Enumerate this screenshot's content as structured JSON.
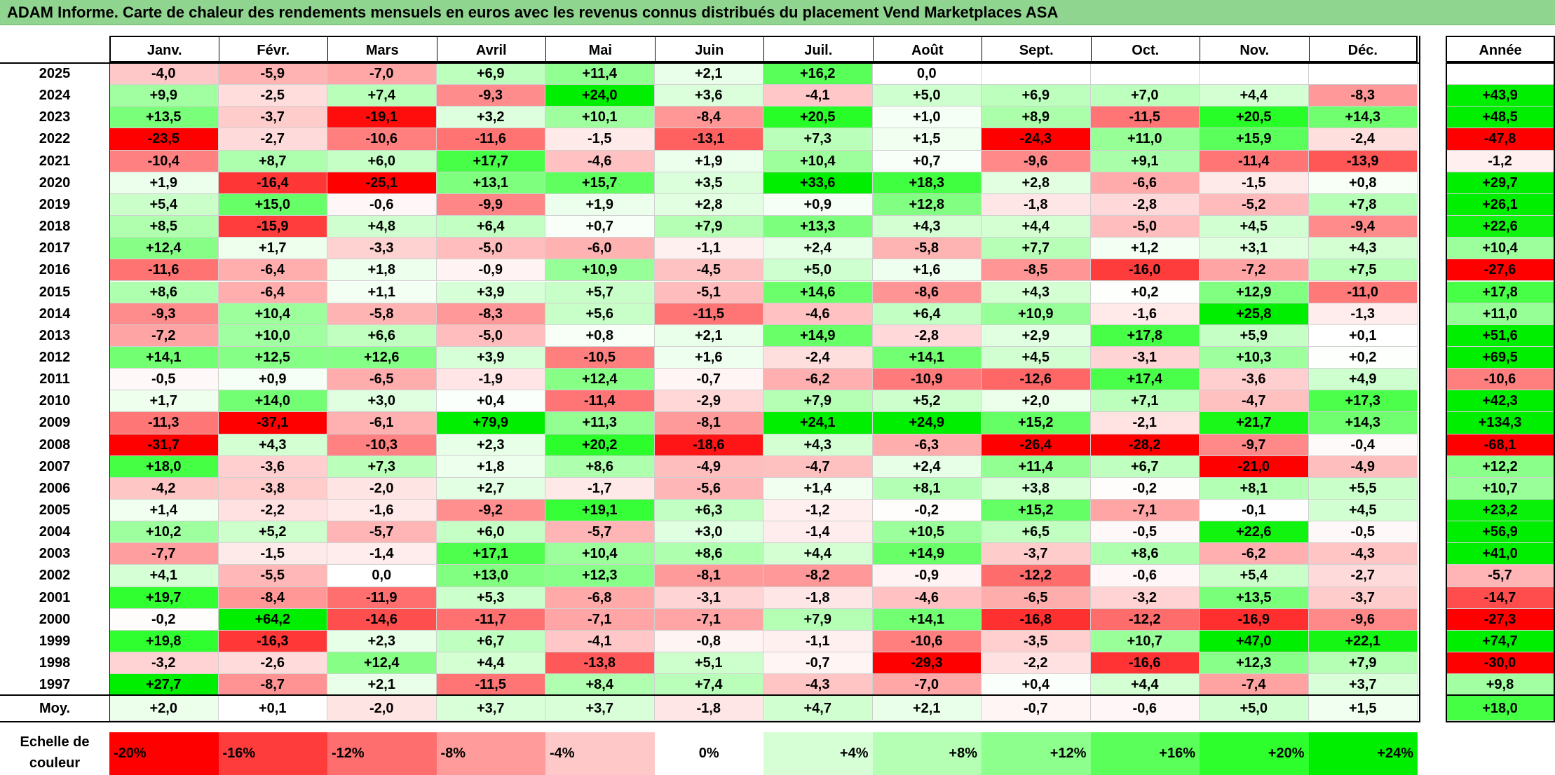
{
  "title": "ADAM Informe. Carte de chaleur des rendements mensuels en euros avec les revenus connus distribués du placement Vend Marketplaces ASA",
  "chart_data": {
    "type": "heatmap",
    "title": "ADAM Informe. Carte de chaleur des rendements mensuels en euros avec les revenus connus distribués du placement Vend Marketplaces ASA",
    "months": [
      "Janv.",
      "Févr.",
      "Mars",
      "Avril",
      "Mai",
      "Juin",
      "Juil.",
      "Août",
      "Sept.",
      "Oct.",
      "Nov.",
      "Déc."
    ],
    "annual_label": "Année",
    "rows": [
      {
        "year": "2025",
        "values": [
          "-4,0",
          "-5,9",
          "-7,0",
          "+6,9",
          "+11,4",
          "+2,1",
          "+16,2",
          "0,0",
          "",
          "",
          "",
          ""
        ],
        "annual": ""
      },
      {
        "year": "2024",
        "values": [
          "+9,9",
          "-2,5",
          "+7,4",
          "-9,3",
          "+24,0",
          "+3,6",
          "-4,1",
          "+5,0",
          "+6,9",
          "+7,0",
          "+4,4",
          "-8,3"
        ],
        "annual": "+43,9"
      },
      {
        "year": "2023",
        "values": [
          "+13,5",
          "-3,7",
          "-19,1",
          "+3,2",
          "+10,1",
          "-8,4",
          "+20,5",
          "+1,0",
          "+8,9",
          "-11,5",
          "+20,5",
          "+14,3"
        ],
        "annual": "+48,5"
      },
      {
        "year": "2022",
        "values": [
          "-23,5",
          "-2,7",
          "-10,6",
          "-11,6",
          "-1,5",
          "-13,1",
          "+7,3",
          "+1,5",
          "-24,3",
          "+11,0",
          "+15,9",
          "-2,4"
        ],
        "annual": "-47,8"
      },
      {
        "year": "2021",
        "values": [
          "-10,4",
          "+8,7",
          "+6,0",
          "+17,7",
          "-4,6",
          "+1,9",
          "+10,4",
          "+0,7",
          "-9,6",
          "+9,1",
          "-11,4",
          "-13,9"
        ],
        "annual": "-1,2"
      },
      {
        "year": "2020",
        "values": [
          "+1,9",
          "-16,4",
          "-25,1",
          "+13,1",
          "+15,7",
          "+3,5",
          "+33,6",
          "+18,3",
          "+2,8",
          "-6,6",
          "-1,5",
          "+0,8"
        ],
        "annual": "+29,7"
      },
      {
        "year": "2019",
        "values": [
          "+5,4",
          "+15,0",
          "-0,6",
          "-9,9",
          "+1,9",
          "+2,8",
          "+0,9",
          "+12,8",
          "-1,8",
          "-2,8",
          "-5,2",
          "+7,8"
        ],
        "annual": "+26,1"
      },
      {
        "year": "2018",
        "values": [
          "+8,5",
          "-15,9",
          "+4,8",
          "+6,4",
          "+0,7",
          "+7,9",
          "+13,3",
          "+4,3",
          "+4,4",
          "-5,0",
          "+4,5",
          "-9,4"
        ],
        "annual": "+22,6"
      },
      {
        "year": "2017",
        "values": [
          "+12,4",
          "+1,7",
          "-3,3",
          "-5,0",
          "-6,0",
          "-1,1",
          "+2,4",
          "-5,8",
          "+7,7",
          "+1,2",
          "+3,1",
          "+4,3"
        ],
        "annual": "+10,4"
      },
      {
        "year": "2016",
        "values": [
          "-11,6",
          "-6,4",
          "+1,8",
          "-0,9",
          "+10,9",
          "-4,5",
          "+5,0",
          "+1,6",
          "-8,5",
          "-16,0",
          "-7,2",
          "+7,5"
        ],
        "annual": "-27,6"
      },
      {
        "year": "2015",
        "values": [
          "+8,6",
          "-6,4",
          "+1,1",
          "+3,9",
          "+5,7",
          "-5,1",
          "+14,6",
          "-8,6",
          "+4,3",
          "+0,2",
          "+12,9",
          "-11,0"
        ],
        "annual": "+17,8"
      },
      {
        "year": "2014",
        "values": [
          "-9,3",
          "+10,4",
          "-5,8",
          "-8,3",
          "+5,6",
          "-11,5",
          "-4,6",
          "+6,4",
          "+10,9",
          "-1,6",
          "+25,8",
          "-1,3"
        ],
        "annual": "+11,0"
      },
      {
        "year": "2013",
        "values": [
          "-7,2",
          "+10,0",
          "+6,6",
          "-5,0",
          "+0,8",
          "+2,1",
          "+14,9",
          "-2,8",
          "+2,9",
          "+17,8",
          "+5,9",
          "+0,1"
        ],
        "annual": "+51,6"
      },
      {
        "year": "2012",
        "values": [
          "+14,1",
          "+12,5",
          "+12,6",
          "+3,9",
          "-10,5",
          "+1,6",
          "-2,4",
          "+14,1",
          "+4,5",
          "-3,1",
          "+10,3",
          "+0,2"
        ],
        "annual": "+69,5"
      },
      {
        "year": "2011",
        "values": [
          "-0,5",
          "+0,9",
          "-6,5",
          "-1,9",
          "+12,4",
          "-0,7",
          "-6,2",
          "-10,9",
          "-12,6",
          "+17,4",
          "-3,6",
          "+4,9"
        ],
        "annual": "-10,6"
      },
      {
        "year": "2010",
        "values": [
          "+1,7",
          "+14,0",
          "+3,0",
          "+0,4",
          "-11,4",
          "-2,9",
          "+7,9",
          "+5,2",
          "+2,0",
          "+7,1",
          "-4,7",
          "+17,3"
        ],
        "annual": "+42,3"
      },
      {
        "year": "2009",
        "values": [
          "-11,3",
          "-37,1",
          "-6,1",
          "+79,9",
          "+11,3",
          "-8,1",
          "+24,1",
          "+24,9",
          "+15,2",
          "-2,1",
          "+21,7",
          "+14,3"
        ],
        "annual": "+134,3"
      },
      {
        "year": "2008",
        "values": [
          "-31,7",
          "+4,3",
          "-10,3",
          "+2,3",
          "+20,2",
          "-18,6",
          "+4,3",
          "-6,3",
          "-26,4",
          "-28,2",
          "-9,7",
          "-0,4"
        ],
        "annual": "-68,1"
      },
      {
        "year": "2007",
        "values": [
          "+18,0",
          "-3,6",
          "+7,3",
          "+1,8",
          "+8,6",
          "-4,9",
          "-4,7",
          "+2,4",
          "+11,4",
          "+6,7",
          "-21,0",
          "-4,9"
        ],
        "annual": "+12,2"
      },
      {
        "year": "2006",
        "values": [
          "-4,2",
          "-3,8",
          "-2,0",
          "+2,7",
          "-1,7",
          "-5,6",
          "+1,4",
          "+8,1",
          "+3,8",
          "-0,2",
          "+8,1",
          "+5,5"
        ],
        "annual": "+10,7"
      },
      {
        "year": "2005",
        "values": [
          "+1,4",
          "-2,2",
          "-1,6",
          "-9,2",
          "+19,1",
          "+6,3",
          "-1,2",
          "-0,2",
          "+15,2",
          "-7,1",
          "-0,1",
          "+4,5"
        ],
        "annual": "+23,2"
      },
      {
        "year": "2004",
        "values": [
          "+10,2",
          "+5,2",
          "-5,7",
          "+6,0",
          "-5,7",
          "+3,0",
          "-1,4",
          "+10,5",
          "+6,5",
          "-0,5",
          "+22,6",
          "-0,5"
        ],
        "annual": "+56,9"
      },
      {
        "year": "2003",
        "values": [
          "-7,7",
          "-1,5",
          "-1,4",
          "+17,1",
          "+10,4",
          "+8,6",
          "+4,4",
          "+14,9",
          "-3,7",
          "+8,6",
          "-6,2",
          "-4,3"
        ],
        "annual": "+41,0"
      },
      {
        "year": "2002",
        "values": [
          "+4,1",
          "-5,5",
          "0,0",
          "+13,0",
          "+12,3",
          "-8,1",
          "-8,2",
          "-0,9",
          "-12,2",
          "-0,6",
          "+5,4",
          "-2,7"
        ],
        "annual": "-5,7"
      },
      {
        "year": "2001",
        "values": [
          "+19,7",
          "-8,4",
          "-11,9",
          "+5,3",
          "-6,8",
          "-3,1",
          "-1,8",
          "-4,6",
          "-6,5",
          "-3,2",
          "+13,5",
          "-3,7"
        ],
        "annual": "-14,7"
      },
      {
        "year": "2000",
        "values": [
          "-0,2",
          "+64,2",
          "-14,6",
          "-11,7",
          "-7,1",
          "-7,1",
          "+7,9",
          "+14,1",
          "-16,8",
          "-12,2",
          "-16,9",
          "-9,6"
        ],
        "annual": "-27,3"
      },
      {
        "year": "1999",
        "values": [
          "+19,8",
          "-16,3",
          "+2,3",
          "+6,7",
          "-4,1",
          "-0,8",
          "-1,1",
          "-10,6",
          "-3,5",
          "+10,7",
          "+47,0",
          "+22,1"
        ],
        "annual": "+74,7"
      },
      {
        "year": "1998",
        "values": [
          "-3,2",
          "-2,6",
          "+12,4",
          "+4,4",
          "-13,8",
          "+5,1",
          "-0,7",
          "-29,3",
          "-2,2",
          "-16,6",
          "+12,3",
          "+7,9"
        ],
        "annual": "-30,0"
      },
      {
        "year": "1997",
        "values": [
          "+27,7",
          "-8,7",
          "+2,1",
          "-11,5",
          "+8,4",
          "+7,4",
          "-4,3",
          "-7,0",
          "+0,4",
          "+4,4",
          "-7,4",
          "+3,7"
        ],
        "annual": "+9,8"
      }
    ],
    "average": {
      "label": "Moy.",
      "values": [
        "+2,0",
        "+0,1",
        "-2,0",
        "+3,7",
        "+3,7",
        "-1,8",
        "+4,7",
        "+2,1",
        "-0,7",
        "-0,6",
        "+5,0",
        "+1,5"
      ],
      "annual": "+18,0"
    },
    "color_scale": {
      "label": "Echelle de couleur",
      "steps": [
        "-20%",
        "-16%",
        "-12%",
        "-8%",
        "-4%",
        "0%",
        "+4%",
        "+8%",
        "+12%",
        "+16%",
        "+20%",
        "+24%"
      ],
      "stops": [
        -20,
        -16,
        -12,
        -8,
        -4,
        0,
        4,
        8,
        12,
        16,
        20,
        24
      ],
      "colors": [
        "#ff0000",
        "#ff3c3c",
        "#ff6e6e",
        "#ff9b9b",
        "#ffc8c8",
        "#ffffff",
        "#d6ffd6",
        "#b4ffb4",
        "#8cff8c",
        "#5aff5a",
        "#2dff2d",
        "#00ee00"
      ]
    }
  }
}
